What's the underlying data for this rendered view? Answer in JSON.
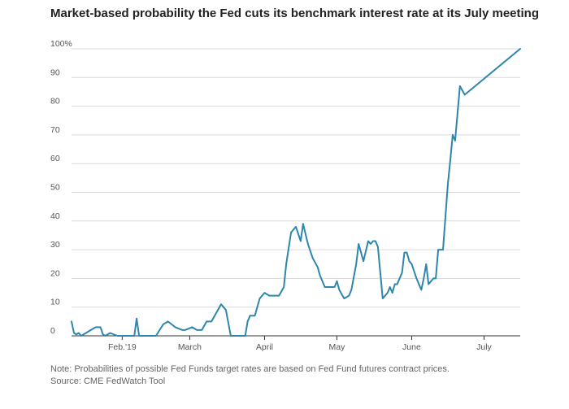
{
  "title": "Market-based probability the Fed cuts its benchmark interest rate at its July meeting",
  "note": "Note: Probabilities of possible Fed Funds target rates are based on Fed Fund futures contract prices.",
  "source": "Source: CME FedWatch Tool",
  "colors": {
    "line": "#2e86ab",
    "grid": "#d9d9d9",
    "axis": "#333333"
  },
  "chart_data": {
    "type": "line",
    "title": "Market-based probability the Fed cuts its benchmark interest rate at its July meeting",
    "xlabel": "",
    "ylabel": "",
    "ylim": [
      0,
      100
    ],
    "xlim": [
      "2019-01-11",
      "2019-07-16"
    ],
    "grid": "horizontal",
    "y_ticks": [
      0,
      10,
      20,
      30,
      40,
      50,
      60,
      70,
      80,
      90,
      100
    ],
    "y_tick_labels": [
      "0",
      "10",
      "20",
      "30",
      "40",
      "50",
      "60",
      "70",
      "80",
      "90",
      "100%"
    ],
    "x_tick_labels": [
      {
        "date": "2019-02-01",
        "label": "Feb.'19"
      },
      {
        "date": "2019-03-01",
        "label": "March"
      },
      {
        "date": "2019-04-01",
        "label": "April"
      },
      {
        "date": "2019-05-01",
        "label": "May"
      },
      {
        "date": "2019-06-01",
        "label": "June"
      },
      {
        "date": "2019-07-01",
        "label": "July"
      }
    ],
    "series": [
      {
        "x": [
          "2019-01-11",
          "2019-01-12",
          "2019-01-13",
          "2019-01-14",
          "2019-01-15",
          "2019-01-17",
          "2019-01-19",
          "2019-01-21",
          "2019-01-23",
          "2019-01-24",
          "2019-01-25",
          "2019-01-27",
          "2019-01-30",
          "2019-02-02",
          "2019-02-06",
          "2019-02-07",
          "2019-02-08",
          "2019-02-12",
          "2019-02-15",
          "2019-02-18",
          "2019-02-20",
          "2019-02-23",
          "2019-02-26",
          "2019-02-27",
          "2019-03-02",
          "2019-03-04",
          "2019-03-06",
          "2019-03-08",
          "2019-03-10",
          "2019-03-12",
          "2019-03-14",
          "2019-03-16",
          "2019-03-18",
          "2019-03-20",
          "2019-03-22",
          "2019-03-24",
          "2019-03-25",
          "2019-03-26",
          "2019-03-27",
          "2019-03-28",
          "2019-03-30",
          "2019-04-01",
          "2019-04-03",
          "2019-04-05",
          "2019-04-07",
          "2019-04-09",
          "2019-04-10",
          "2019-04-12",
          "2019-04-14",
          "2019-04-16",
          "2019-04-17",
          "2019-04-19",
          "2019-04-21",
          "2019-04-23",
          "2019-04-24",
          "2019-04-25",
          "2019-04-26",
          "2019-04-28",
          "2019-04-30",
          "2019-05-01",
          "2019-05-02",
          "2019-05-04",
          "2019-05-06",
          "2019-05-07",
          "2019-05-09",
          "2019-05-10",
          "2019-05-12",
          "2019-05-14",
          "2019-05-15",
          "2019-05-16",
          "2019-05-17",
          "2019-05-18",
          "2019-05-20",
          "2019-05-22",
          "2019-05-23",
          "2019-05-24",
          "2019-05-25",
          "2019-05-26",
          "2019-05-28",
          "2019-05-29",
          "2019-05-30",
          "2019-05-31",
          "2019-06-01",
          "2019-06-03",
          "2019-06-05",
          "2019-06-06",
          "2019-06-07",
          "2019-06-08",
          "2019-06-10",
          "2019-06-11",
          "2019-06-12",
          "2019-06-14",
          "2019-06-16",
          "2019-06-17",
          "2019-06-18",
          "2019-06-19",
          "2019-06-21",
          "2019-06-23",
          "2019-07-16"
        ],
        "y": [
          5,
          1,
          0.5,
          1,
          0,
          1,
          2,
          3,
          3,
          0.5,
          0,
          1,
          0,
          0,
          0,
          6,
          0,
          0,
          0,
          4,
          5,
          3,
          2,
          2,
          3,
          2,
          2,
          5,
          5,
          8,
          11,
          9,
          0,
          0,
          0,
          0,
          5,
          7,
          7,
          7,
          13,
          15,
          14,
          14,
          14,
          17,
          25,
          36,
          38,
          33,
          39,
          32,
          27,
          24,
          21,
          19,
          17,
          17,
          17,
          19,
          16,
          13,
          14,
          16,
          25,
          32,
          26,
          33,
          32,
          33,
          33,
          31,
          13,
          15,
          17,
          15,
          18,
          18,
          22,
          29,
          29,
          26,
          25,
          20,
          16,
          20,
          25,
          18,
          20,
          20,
          30,
          30,
          53,
          61,
          70,
          68,
          87,
          84,
          100
        ]
      }
    ]
  }
}
